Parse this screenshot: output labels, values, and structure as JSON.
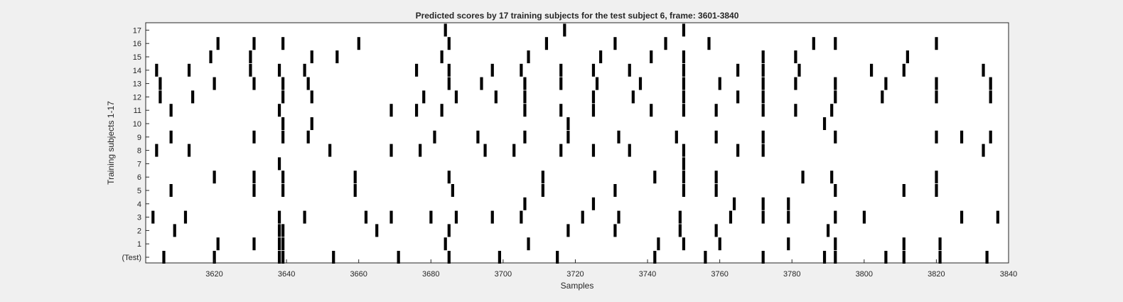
{
  "chart_data": {
    "type": "raster",
    "title": "Predicted scores by 17 training subjects for the test subject 6, frame: 3601-3840",
    "xlabel": "Samples",
    "ylabel": "Training subjects 1-17",
    "xlim": [
      3601,
      3840
    ],
    "xticks": [
      3620,
      3640,
      3660,
      3680,
      3700,
      3720,
      3740,
      3760,
      3780,
      3800,
      3820,
      3840
    ],
    "grid": false,
    "rows": [
      {
        "label": "(Test)",
        "x": [
          3606,
          3620,
          3638,
          3639,
          3653,
          3671,
          3685,
          3699,
          3715,
          3742,
          3756,
          3772,
          3789,
          3792,
          3806,
          3811,
          3821,
          3834
        ]
      },
      {
        "label": "1",
        "x": [
          3621,
          3631,
          3638,
          3639,
          3684,
          3707,
          3743,
          3750,
          3760,
          3779,
          3792,
          3811,
          3821
        ]
      },
      {
        "label": "2",
        "x": [
          3609,
          3638,
          3639,
          3665,
          3685,
          3718,
          3731,
          3749,
          3759,
          3790
        ]
      },
      {
        "label": "3",
        "x": [
          3603,
          3612,
          3638,
          3645,
          3662,
          3669,
          3680,
          3687,
          3697,
          3705,
          3722,
          3732,
          3749,
          3763,
          3772,
          3779,
          3792,
          3800,
          3827,
          3837
        ]
      },
      {
        "label": "4",
        "x": [
          3706,
          3725,
          3764,
          3772,
          3779
        ]
      },
      {
        "label": "5",
        "x": [
          3608,
          3631,
          3639,
          3659,
          3686,
          3711,
          3731,
          3750,
          3759,
          3792,
          3811,
          3820
        ]
      },
      {
        "label": "6",
        "x": [
          3620,
          3631,
          3639,
          3659,
          3685,
          3711,
          3742,
          3750,
          3759,
          3783,
          3791,
          3820
        ]
      },
      {
        "label": "7",
        "x": [
          3638,
          3750
        ]
      },
      {
        "label": "8",
        "x": [
          3604,
          3613,
          3652,
          3669,
          3677,
          3695,
          3703,
          3716,
          3725,
          3735,
          3750,
          3765,
          3772,
          3833
        ]
      },
      {
        "label": "9",
        "x": [
          3608,
          3631,
          3639,
          3646,
          3681,
          3693,
          3706,
          3718,
          3732,
          3748,
          3759,
          3772,
          3792,
          3820,
          3827,
          3835
        ]
      },
      {
        "label": "10",
        "x": [
          3639,
          3647,
          3718,
          3789
        ]
      },
      {
        "label": "11",
        "x": [
          3608,
          3638,
          3669,
          3676,
          3683,
          3706,
          3716,
          3725,
          3741,
          3750,
          3759,
          3772,
          3781,
          3791
        ]
      },
      {
        "label": "12",
        "x": [
          3605,
          3614,
          3639,
          3647,
          3678,
          3687,
          3698,
          3706,
          3725,
          3736,
          3750,
          3765,
          3772,
          3792,
          3805,
          3820,
          3835
        ]
      },
      {
        "label": "13",
        "x": [
          3605,
          3620,
          3631,
          3639,
          3646,
          3685,
          3694,
          3706,
          3716,
          3726,
          3738,
          3750,
          3760,
          3772,
          3781,
          3792,
          3806,
          3820,
          3835
        ]
      },
      {
        "label": "14",
        "x": [
          3604,
          3613,
          3630,
          3638,
          3645,
          3676,
          3685,
          3697,
          3705,
          3716,
          3725,
          3735,
          3750,
          3765,
          3772,
          3782,
          3802,
          3811,
          3833
        ]
      },
      {
        "label": "15",
        "x": [
          3619,
          3630,
          3647,
          3654,
          3683,
          3707,
          3727,
          3741,
          3750,
          3772,
          3781,
          3812
        ]
      },
      {
        "label": "16",
        "x": [
          3621,
          3631,
          3639,
          3660,
          3685,
          3712,
          3731,
          3745,
          3757,
          3786,
          3792,
          3820
        ]
      },
      {
        "label": "17",
        "x": [
          3684,
          3717,
          3750
        ]
      }
    ]
  }
}
